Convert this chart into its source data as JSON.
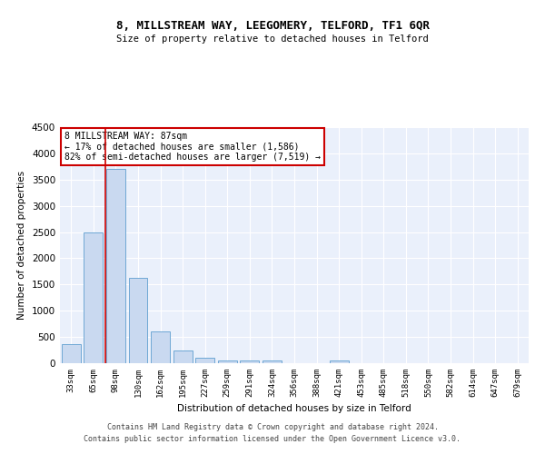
{
  "title1": "8, MILLSTREAM WAY, LEEGOMERY, TELFORD, TF1 6QR",
  "title2": "Size of property relative to detached houses in Telford",
  "xlabel": "Distribution of detached houses by size in Telford",
  "ylabel": "Number of detached properties",
  "categories": [
    "33sqm",
    "65sqm",
    "98sqm",
    "130sqm",
    "162sqm",
    "195sqm",
    "227sqm",
    "259sqm",
    "291sqm",
    "324sqm",
    "356sqm",
    "388sqm",
    "421sqm",
    "453sqm",
    "485sqm",
    "518sqm",
    "550sqm",
    "582sqm",
    "614sqm",
    "647sqm",
    "679sqm"
  ],
  "values": [
    370,
    2500,
    3700,
    1620,
    600,
    240,
    100,
    60,
    55,
    55,
    0,
    0,
    60,
    0,
    0,
    0,
    0,
    0,
    0,
    0,
    0
  ],
  "bar_color": "#c9d9f0",
  "bar_edge_color": "#6fa8d4",
  "marker_label": "8 MILLSTREAM WAY: 87sqm",
  "annotation_line1": "← 17% of detached houses are smaller (1,586)",
  "annotation_line2": "82% of semi-detached houses are larger (7,519) →",
  "marker_color": "#cc0000",
  "ylim": [
    0,
    4500
  ],
  "yticks": [
    0,
    500,
    1000,
    1500,
    2000,
    2500,
    3000,
    3500,
    4000,
    4500
  ],
  "bg_color": "#eaf0fb",
  "grid_color": "#ffffff",
  "footer1": "Contains HM Land Registry data © Crown copyright and database right 2024.",
  "footer2": "Contains public sector information licensed under the Open Government Licence v3.0."
}
